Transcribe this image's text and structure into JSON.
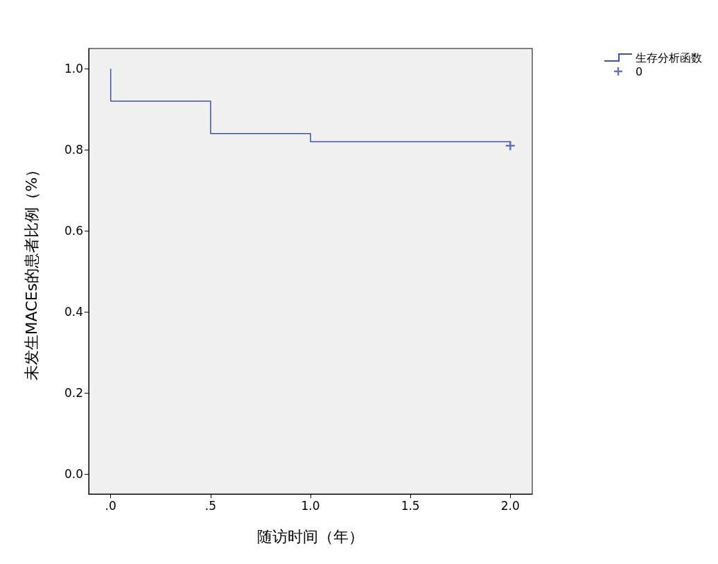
{
  "chart_data": {
    "type": "step",
    "xlabel": "随访时间（年）",
    "ylabel": "未发生MACEs的患者比例（%）",
    "xlim": [
      -0.11,
      2.11
    ],
    "xticks": [
      {
        "value": 0,
        "label": ".0"
      },
      {
        "value": 0.5,
        "label": ".5"
      },
      {
        "value": 1,
        "label": "1.0"
      },
      {
        "value": 1.5,
        "label": "1.5"
      },
      {
        "value": 2,
        "label": "2.0"
      }
    ],
    "ylim": [
      -0.05,
      1.05
    ],
    "yticks": [
      {
        "value": 0,
        "label": "0.0"
      },
      {
        "value": 0.2,
        "label": "0.2"
      },
      {
        "value": 0.4,
        "label": "0.4"
      },
      {
        "value": 0.6,
        "label": "0.6"
      },
      {
        "value": 0.8,
        "label": "0.8"
      },
      {
        "value": 1,
        "label": "1.0"
      }
    ],
    "series": [
      {
        "name": "生存分析函数",
        "color": "#3d52a8",
        "x": [
          0,
          0,
          0.5,
          1.0,
          2.0
        ],
        "values": [
          1.0,
          0.92,
          0.84,
          0.82,
          0.82
        ]
      },
      {
        "name": "0",
        "type": "scatter",
        "color": "#3d52a8",
        "marker": "cross",
        "x": [
          2.0
        ],
        "values": [
          0.81
        ]
      }
    ],
    "grid": false,
    "legend": "top right"
  }
}
